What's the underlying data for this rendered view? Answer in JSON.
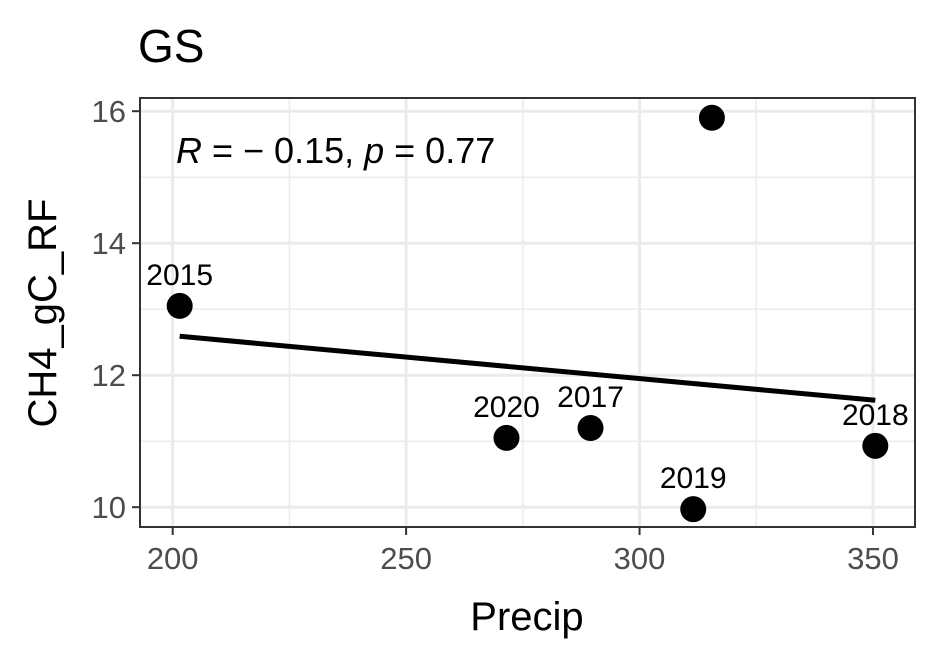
{
  "chart_data": {
    "type": "scatter",
    "title": "GS",
    "xlabel": "Precip",
    "ylabel": "CH4_gC_RF",
    "xlim": [
      193,
      359
    ],
    "ylim": [
      9.7,
      16.2
    ],
    "xticks": [
      200,
      250,
      300,
      350
    ],
    "yticks": [
      10,
      12,
      14,
      16
    ],
    "xtick_labels": [
      "200",
      "250",
      "300",
      "350"
    ],
    "ytick_labels": [
      "10",
      "12",
      "14",
      "16"
    ],
    "grid": true,
    "points": [
      {
        "x": 201.5,
        "y": 13.05,
        "label": "2015"
      },
      {
        "x": 271.5,
        "y": 11.05,
        "label": "2020"
      },
      {
        "x": 289.5,
        "y": 11.2,
        "label": "2017"
      },
      {
        "x": 311.5,
        "y": 9.97,
        "label": "2019"
      },
      {
        "x": 315.5,
        "y": 15.9,
        "label": ""
      },
      {
        "x": 350.5,
        "y": 10.93,
        "label": "2018"
      }
    ],
    "trendline": {
      "x1": 201.5,
      "y1": 12.59,
      "x2": 350.5,
      "y2": 11.62
    },
    "annotation": {
      "r_symbol": "R",
      "r_text": " = − 0.15, ",
      "p_symbol": "p",
      "p_text": " = 0.77"
    }
  }
}
